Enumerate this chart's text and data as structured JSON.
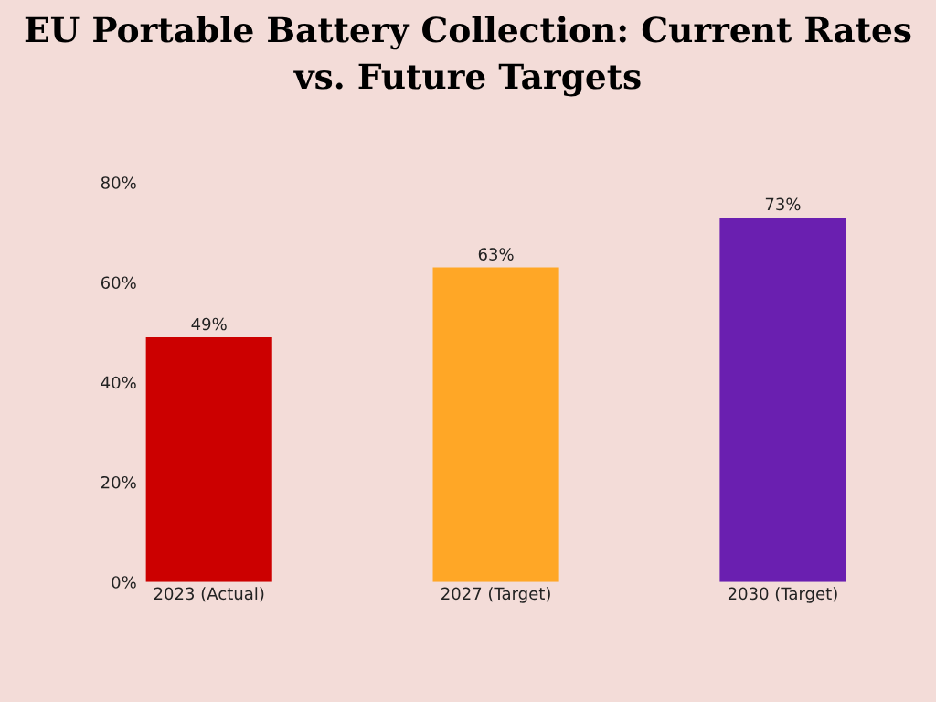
{
  "chart_data": {
    "type": "bar",
    "title": "EU Portable Battery Collection: Current Rates vs. Future Targets",
    "categories": [
      "2023 (Actual)",
      "2027 (Target)",
      "2030 (Target)"
    ],
    "values": [
      49,
      63,
      73
    ],
    "colors": [
      "#cc0000",
      "#ffa726",
      "#6a1fb0"
    ],
    "value_labels": [
      "49%",
      "63%",
      "73%"
    ],
    "ylim": [
      0,
      80
    ],
    "yticks": [
      {
        "value": 0,
        "label": "0%"
      },
      {
        "value": 20,
        "label": "20%"
      },
      {
        "value": 40,
        "label": "40%"
      },
      {
        "value": 60,
        "label": "60%"
      },
      {
        "value": 80,
        "label": "80%"
      }
    ],
    "grid": false,
    "legend": false
  }
}
